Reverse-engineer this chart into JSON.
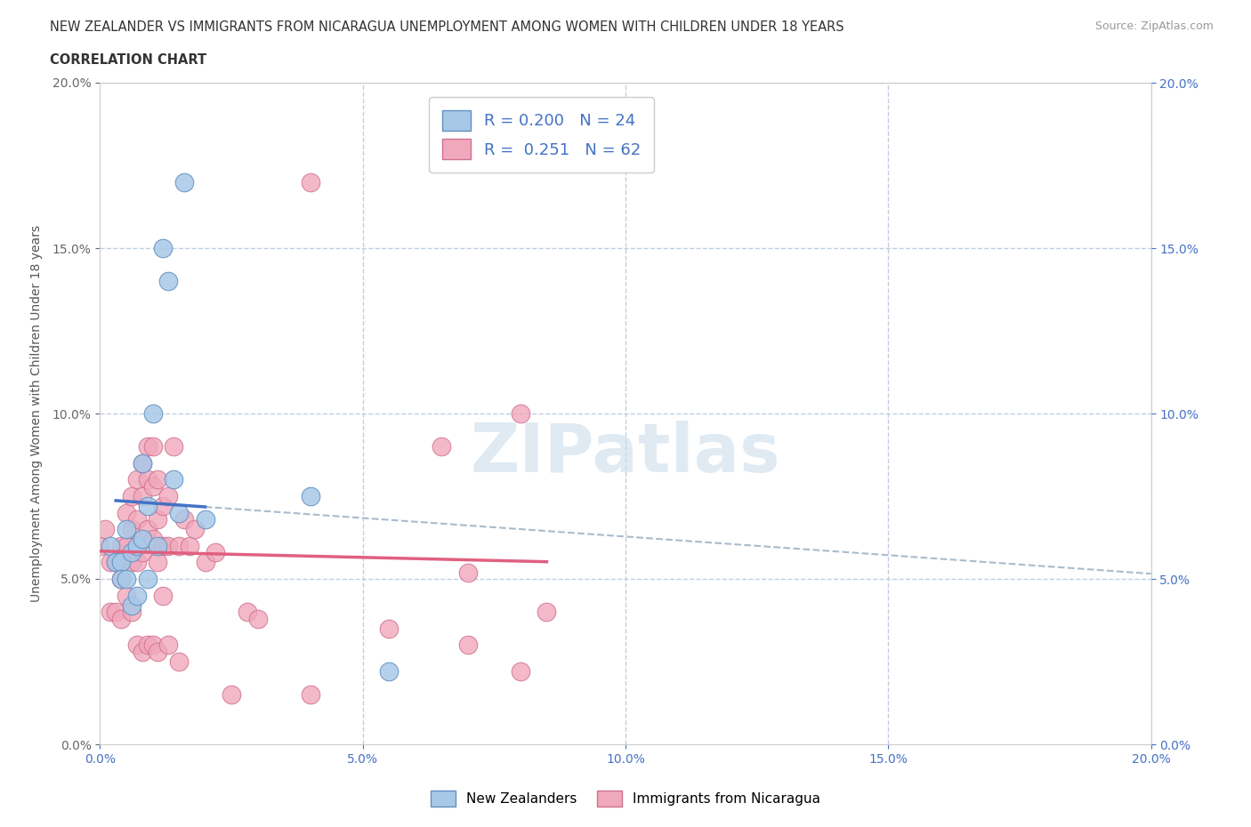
{
  "title_line1": "NEW ZEALANDER VS IMMIGRANTS FROM NICARAGUA UNEMPLOYMENT AMONG WOMEN WITH CHILDREN UNDER 18 YEARS",
  "title_line2": "CORRELATION CHART",
  "source": "Source: ZipAtlas.com",
  "ylabel": "Unemployment Among Women with Children Under 18 years",
  "xlim": [
    0.0,
    0.2
  ],
  "ylim": [
    0.0,
    0.2
  ],
  "xticks": [
    0.0,
    0.05,
    0.1,
    0.15,
    0.2
  ],
  "yticks": [
    0.0,
    0.05,
    0.1,
    0.15,
    0.2
  ],
  "grid_color": "#c0cfe0",
  "background_color": "#ffffff",
  "blue_color": "#a8c8e8",
  "pink_color": "#f0a8bc",
  "blue_line_color": "#4472c4",
  "pink_line_color": "#e06080",
  "dashed_color": "#aabbcc",
  "R_blue": 0.2,
  "N_blue": 24,
  "R_pink": 0.251,
  "N_pink": 62,
  "nz_x": [
    0.002,
    0.003,
    0.004,
    0.004,
    0.005,
    0.005,
    0.006,
    0.006,
    0.007,
    0.007,
    0.008,
    0.008,
    0.009,
    0.009,
    0.01,
    0.011,
    0.012,
    0.013,
    0.014,
    0.015,
    0.016,
    0.02,
    0.04,
    0.055
  ],
  "nz_y": [
    0.06,
    0.055,
    0.055,
    0.05,
    0.065,
    0.05,
    0.058,
    0.042,
    0.06,
    0.045,
    0.085,
    0.062,
    0.072,
    0.05,
    0.1,
    0.06,
    0.15,
    0.14,
    0.08,
    0.07,
    0.17,
    0.068,
    0.075,
    0.022
  ],
  "nic_x": [
    0.0,
    0.001,
    0.002,
    0.002,
    0.003,
    0.003,
    0.004,
    0.004,
    0.004,
    0.005,
    0.005,
    0.005,
    0.006,
    0.006,
    0.006,
    0.006,
    0.007,
    0.007,
    0.007,
    0.007,
    0.008,
    0.008,
    0.008,
    0.008,
    0.009,
    0.009,
    0.009,
    0.009,
    0.01,
    0.01,
    0.01,
    0.01,
    0.011,
    0.011,
    0.011,
    0.011,
    0.012,
    0.012,
    0.012,
    0.013,
    0.013,
    0.013,
    0.014,
    0.015,
    0.015,
    0.016,
    0.017,
    0.018,
    0.02,
    0.022,
    0.025,
    0.028,
    0.03,
    0.04,
    0.04,
    0.055,
    0.065,
    0.07,
    0.07,
    0.08,
    0.08,
    0.085
  ],
  "nic_y": [
    0.06,
    0.065,
    0.055,
    0.04,
    0.055,
    0.04,
    0.06,
    0.05,
    0.038,
    0.07,
    0.06,
    0.045,
    0.075,
    0.065,
    0.055,
    0.04,
    0.08,
    0.068,
    0.055,
    0.03,
    0.085,
    0.075,
    0.058,
    0.028,
    0.09,
    0.08,
    0.065,
    0.03,
    0.09,
    0.078,
    0.062,
    0.03,
    0.08,
    0.068,
    0.055,
    0.028,
    0.072,
    0.06,
    0.045,
    0.075,
    0.06,
    0.03,
    0.09,
    0.06,
    0.025,
    0.068,
    0.06,
    0.065,
    0.055,
    0.058,
    0.015,
    0.04,
    0.038,
    0.17,
    0.015,
    0.035,
    0.09,
    0.052,
    0.03,
    0.1,
    0.022,
    0.04
  ],
  "blue_line_x_start": 0.003,
  "blue_line_x_end": 0.02,
  "pink_line_x_start": 0.0,
  "pink_line_x_end": 0.085
}
